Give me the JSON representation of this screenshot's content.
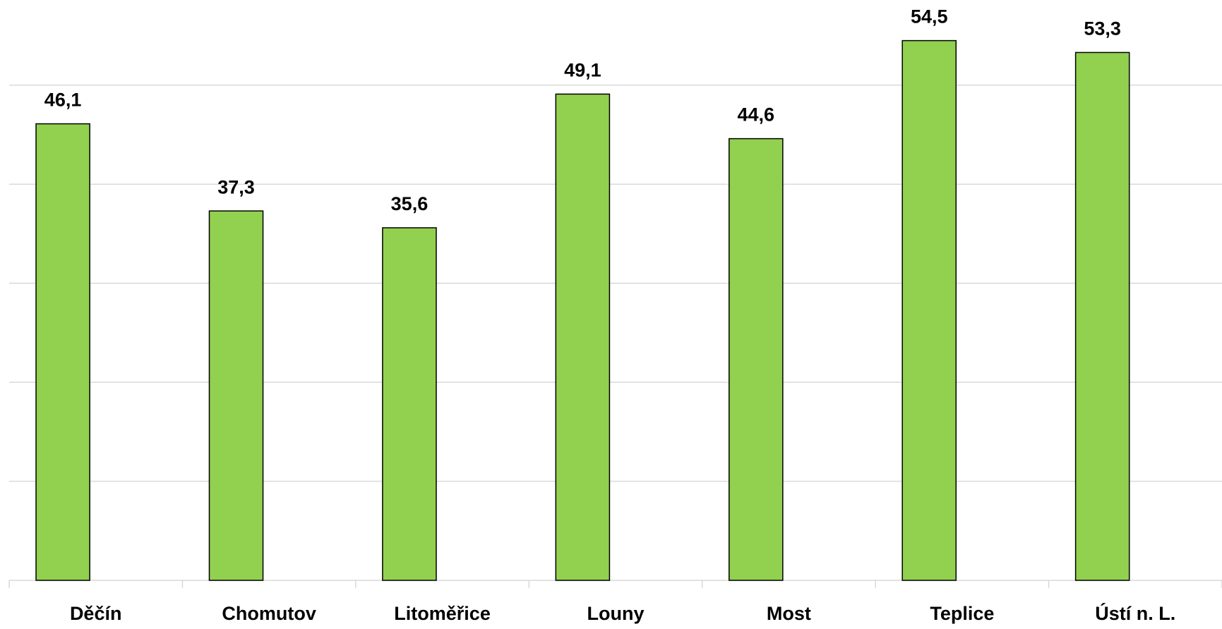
{
  "chart_data": {
    "type": "bar",
    "categories": [
      "Děčín",
      "Chomutov",
      "Litoměřice",
      "Louny",
      "Most",
      "Teplice",
      "Ústí n. L."
    ],
    "values": [
      46.1,
      37.3,
      35.6,
      49.1,
      44.6,
      54.5,
      53.3
    ],
    "value_labels": [
      "46,1",
      "37,3",
      "35,6",
      "49,1",
      "44,6",
      "54,5",
      "53,3"
    ],
    "color": "#92d050",
    "ylim": [
      0,
      58.6
    ],
    "yticks": [
      0,
      10,
      20,
      30,
      40,
      50
    ],
    "grid": true
  }
}
